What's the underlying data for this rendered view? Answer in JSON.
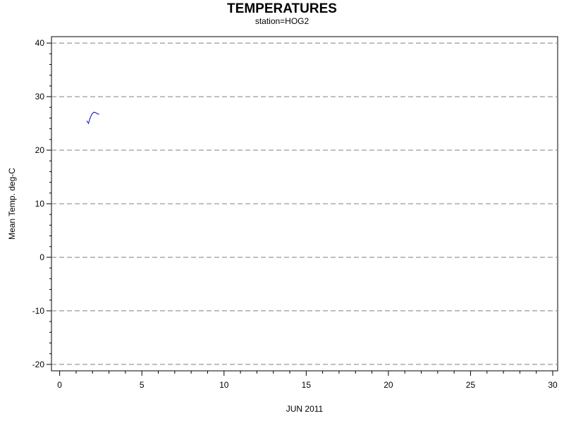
{
  "chart_data": {
    "type": "line",
    "title": "TEMPERATURES",
    "subtitle": "station=HOG2",
    "xlabel": "JUN 2011",
    "ylabel": "Mean Temp. deg-C",
    "xlim": [
      -0.5,
      30.3
    ],
    "ylim": [
      -21.2,
      41.2
    ],
    "x_ticks": [
      0,
      5,
      10,
      15,
      20,
      25,
      30
    ],
    "y_ticks": [
      -20,
      -10,
      0,
      10,
      20,
      30,
      40
    ],
    "grid": "horizontal-dashed",
    "series": [
      {
        "color": "#0000cc",
        "x": [
          1.65,
          1.75,
          1.85,
          1.92,
          2.0,
          2.1,
          2.2,
          2.3,
          2.4
        ],
        "y": [
          25.5,
          25.0,
          26.0,
          26.5,
          26.9,
          27.1,
          27.0,
          26.8,
          26.7
        ]
      }
    ]
  }
}
